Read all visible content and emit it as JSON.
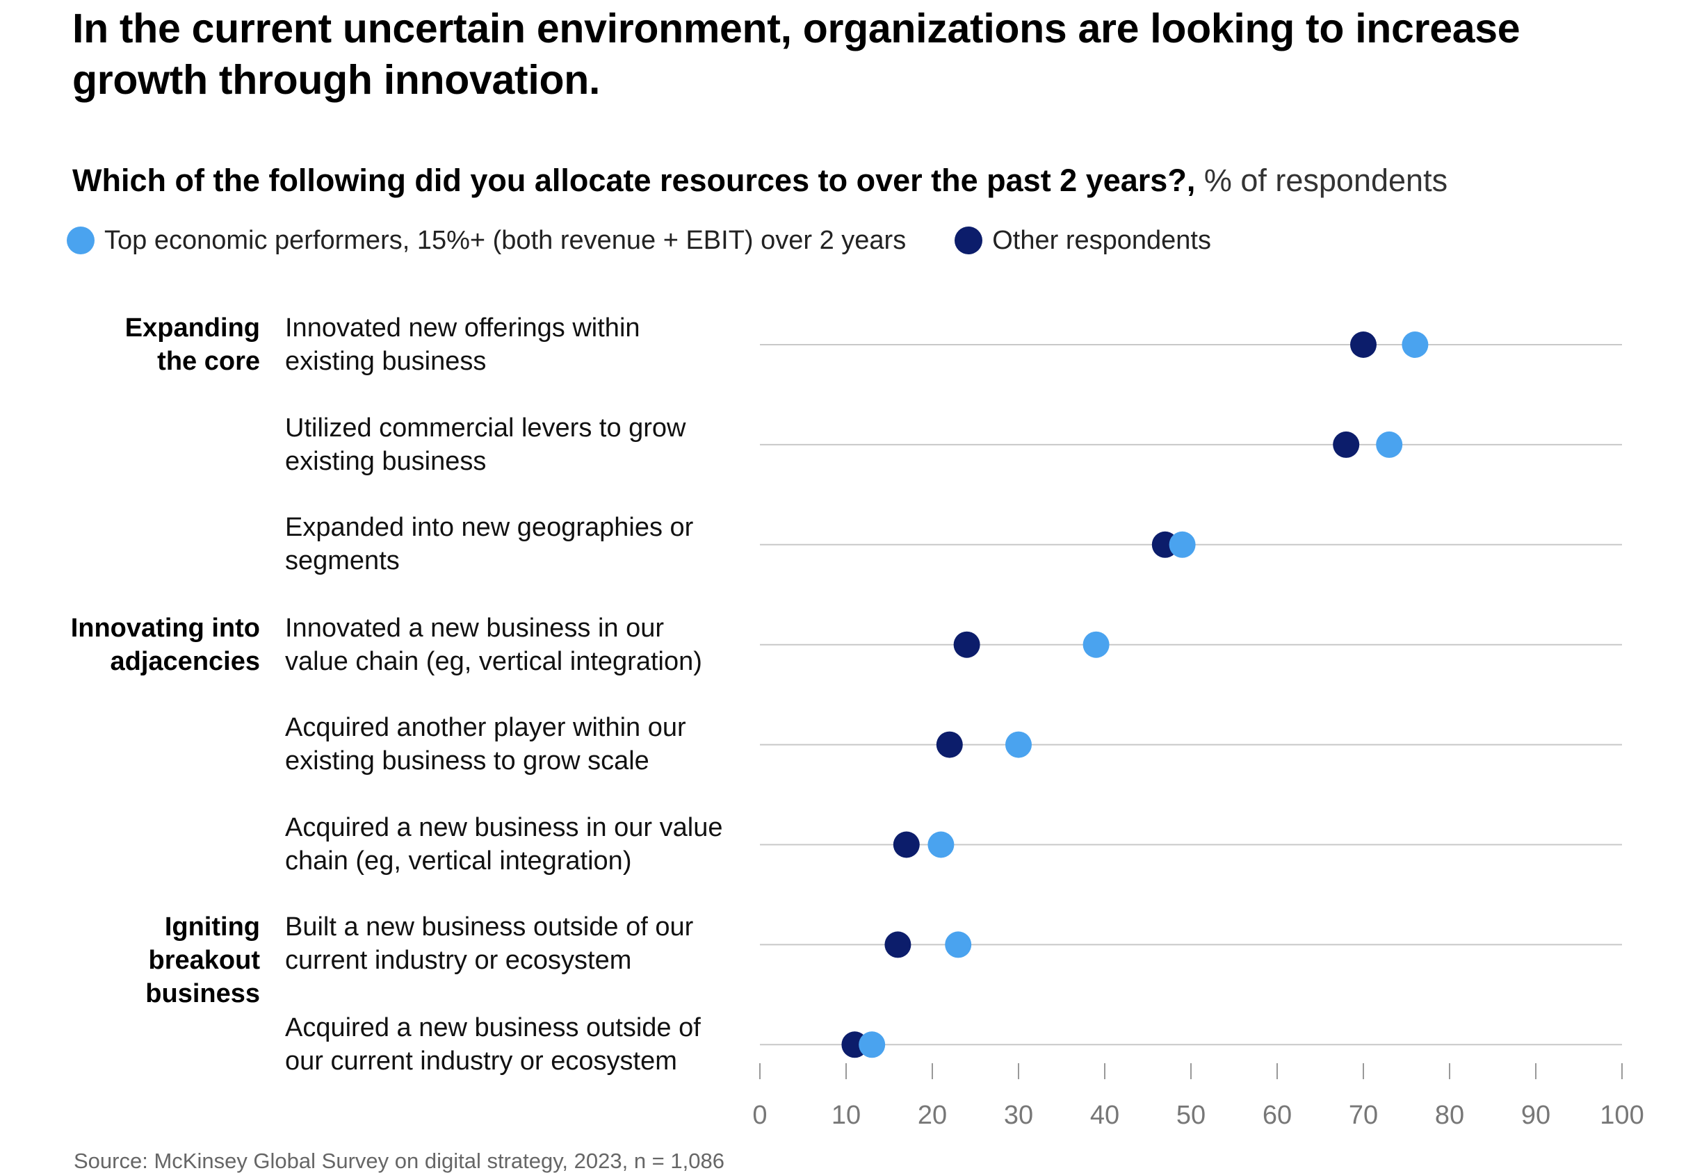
{
  "title": "In the current uncertain environment, organizations are looking to increase growth through innovation.",
  "subtitle": {
    "question": "Which of the following did you allocate resources to over the past 2 years?,",
    "unit": "% of respondents"
  },
  "colors": {
    "top": "#4aa3ef",
    "other": "#0c1d6b",
    "gridline": "#c8c8c8",
    "tick": "#999999",
    "tick_label": "#777777"
  },
  "chart_data": {
    "type": "dot-plot",
    "title": "Which of the following did you allocate resources to over the past 2 years?",
    "ylabel": "",
    "xlabel": "% of respondents",
    "xlim": [
      0,
      100
    ],
    "x_ticks": [
      0,
      10,
      20,
      30,
      40,
      50,
      60,
      70,
      80,
      90,
      100
    ],
    "legend_position": "top-left",
    "grid": true,
    "series": [
      {
        "key": "top",
        "name": "Top economic performers, 15%+ (both revenue + EBIT) over 2 years"
      },
      {
        "key": "other",
        "name": "Other respondents"
      }
    ],
    "groups": [
      {
        "label": "Expanding\nthe core",
        "first_row": 0
      },
      {
        "label": "Innovating into\nadjacencies",
        "first_row": 3
      },
      {
        "label": "Igniting\nbreakout\nbusiness",
        "first_row": 6
      }
    ],
    "categories": [
      {
        "label": "Innovated new offerings within\nexisting business",
        "top": 76,
        "other": 70
      },
      {
        "label": "Utilized commercial levers to grow\nexisting business",
        "top": 73,
        "other": 68
      },
      {
        "label": "Expanded into new geographies or\nsegments",
        "top": 49,
        "other": 47
      },
      {
        "label": "Innovated a new business in our\nvalue chain (eg, vertical integration)",
        "top": 39,
        "other": 24
      },
      {
        "label": "Acquired another player within our\nexisting business to grow scale",
        "top": 30,
        "other": 22
      },
      {
        "label": "Acquired a new business in our value\nchain (eg, vertical integration)",
        "top": 21,
        "other": 17
      },
      {
        "label": "Built a new business outside of our\ncurrent industry or ecosystem",
        "top": 23,
        "other": 16
      },
      {
        "label": "Acquired a new business outside of\nour current industry or ecosystem",
        "top": 13,
        "other": 11
      }
    ]
  },
  "source": "Source: McKinsey Global Survey on digital strategy, 2023, n = 1,086"
}
